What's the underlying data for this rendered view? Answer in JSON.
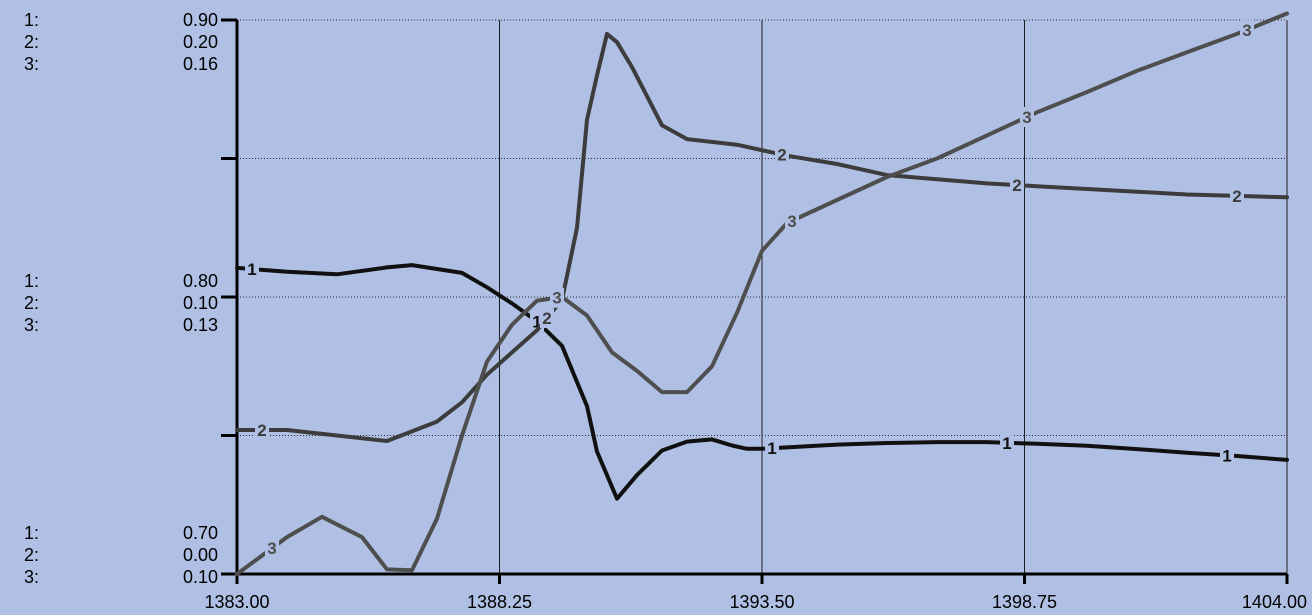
{
  "chart_data": {
    "type": "line",
    "x_ticks": [
      "1383.00",
      "1388.25",
      "1393.50",
      "1398.75",
      "1404.00"
    ],
    "xlim": [
      1383.0,
      1404.0
    ],
    "grid": true,
    "axis_scales": [
      {
        "label": "1:",
        "min": 0.7,
        "max": 0.9,
        "top_label": "0.90",
        "mid_label": "0.80",
        "bottom_label": "0.70"
      },
      {
        "label": "2:",
        "min": 0.0,
        "max": 0.2,
        "top_label": "0.20",
        "mid_label": "0.10",
        "bottom_label": "0.00"
      },
      {
        "label": "3:",
        "min": 0.1,
        "max": 0.16,
        "top_label": "0.16",
        "mid_label": "0.13",
        "bottom_label": "0.10"
      }
    ],
    "series": [
      {
        "name": "1",
        "marker": "1",
        "scale": 0,
        "color": "#101010",
        "x": [
          1383.0,
          1384.0,
          1385.0,
          1386.0,
          1386.5,
          1387.5,
          1388.0,
          1388.5,
          1389.0,
          1389.5,
          1390.0,
          1390.2,
          1390.6,
          1391.0,
          1391.5,
          1392.0,
          1392.5,
          1392.9,
          1393.2,
          1393.5,
          1394.0,
          1395.0,
          1396.0,
          1397.0,
          1398.0,
          1399.0,
          1400.0,
          1401.0,
          1402.0,
          1403.0,
          1404.0
        ],
        "y": [
          0.8105,
          0.8091,
          0.8082,
          0.8107,
          0.8115,
          0.8087,
          0.8035,
          0.7977,
          0.7912,
          0.7824,
          0.7606,
          0.7442,
          0.7272,
          0.7357,
          0.7446,
          0.7478,
          0.7486,
          0.7464,
          0.7452,
          0.7452,
          0.7457,
          0.7467,
          0.7473,
          0.7476,
          0.7476,
          0.747,
          0.7463,
          0.7451,
          0.7438,
          0.7426,
          0.7412
        ]
      },
      {
        "name": "2",
        "marker": "2",
        "scale": 1,
        "color": "#3c3c3c",
        "x": [
          1383.0,
          1384.0,
          1385.0,
          1386.0,
          1387.0,
          1387.5,
          1388.0,
          1388.5,
          1389.0,
          1389.5,
          1389.8,
          1390.0,
          1390.2,
          1390.4,
          1390.6,
          1390.9,
          1391.5,
          1392.0,
          1393.0,
          1394.0,
          1395.0,
          1396.0,
          1397.0,
          1398.0,
          1399.0,
          1400.0,
          1401.0,
          1402.0,
          1403.0,
          1404.0
        ],
        "y": [
          0.052,
          0.052,
          0.05,
          0.048,
          0.055,
          0.062,
          0.072,
          0.08,
          0.088,
          0.099,
          0.125,
          0.164,
          0.18,
          0.195,
          0.192,
          0.183,
          0.162,
          0.157,
          0.155,
          0.151,
          0.148,
          0.144,
          0.1425,
          0.141,
          0.14,
          0.139,
          0.138,
          0.137,
          0.1365,
          0.136
        ]
      },
      {
        "name": "3",
        "marker": "3",
        "scale": 2,
        "color": "#4e4e4e",
        "x": [
          1383.0,
          1384.0,
          1384.7,
          1385.5,
          1386.0,
          1386.5,
          1387.0,
          1387.5,
          1388.0,
          1388.5,
          1389.0,
          1389.5,
          1390.0,
          1390.5,
          1391.0,
          1391.5,
          1392.0,
          1392.5,
          1393.0,
          1393.5,
          1394.0,
          1395.0,
          1396.0,
          1397.0,
          1398.0,
          1399.0,
          1400.0,
          1401.0,
          1402.0,
          1403.0,
          1404.0
        ],
        "y": [
          0.1,
          0.104,
          0.1062,
          0.104,
          0.1005,
          0.1004,
          0.106,
          0.115,
          0.123,
          0.127,
          0.1296,
          0.13,
          0.128,
          0.124,
          0.122,
          0.1197,
          0.1197,
          0.1225,
          0.1283,
          0.135,
          0.138,
          0.1405,
          0.143,
          0.145,
          0.1475,
          0.15,
          0.1522,
          0.1545,
          0.1565,
          0.1585,
          0.1607
        ]
      }
    ]
  }
}
